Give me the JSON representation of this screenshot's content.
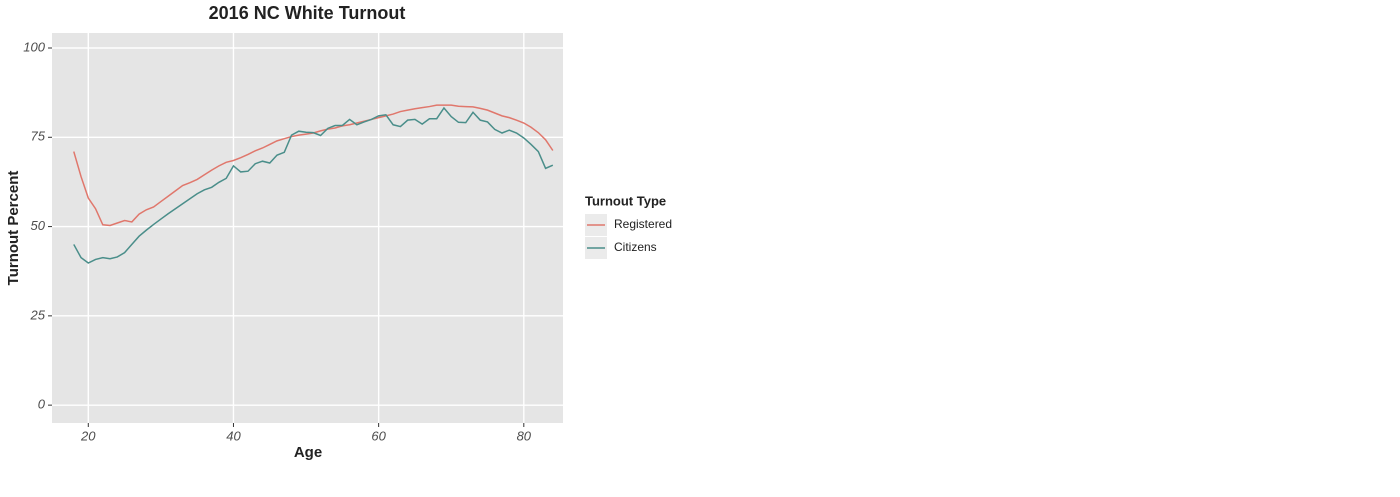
{
  "chart_data": {
    "type": "line",
    "title": "2016 NC White Turnout",
    "x_label": "Age",
    "y_label": "Turnout Percent",
    "legend_title": "Turnout Type",
    "legend_position": "right",
    "grid": true,
    "x": [
      18,
      19,
      20,
      21,
      22,
      23,
      24,
      25,
      26,
      27,
      28,
      29,
      30,
      31,
      32,
      33,
      34,
      35,
      36,
      37,
      38,
      39,
      40,
      41,
      42,
      43,
      44,
      45,
      46,
      47,
      48,
      49,
      50,
      51,
      52,
      53,
      54,
      55,
      56,
      57,
      58,
      59,
      60,
      61,
      62,
      63,
      64,
      65,
      66,
      67,
      68,
      69,
      70,
      71,
      72,
      73,
      74,
      75,
      76,
      77,
      78,
      79,
      80,
      81,
      82,
      83,
      84
    ],
    "xlim": [
      15,
      85.4
    ],
    "xticks": [
      20,
      40,
      60,
      80
    ],
    "ylim": [
      -5,
      104.2
    ],
    "yticks": [
      0,
      25,
      50,
      75,
      100
    ],
    "series": [
      {
        "name": "Registered",
        "color": "#e0776c",
        "values": [
          71,
          64,
          58,
          55,
          50.5,
          50.3,
          51,
          51.7,
          51.3,
          53.5,
          54.7,
          55.5,
          57,
          58.5,
          60,
          61.5,
          62.3,
          63.2,
          64.5,
          65.8,
          67,
          68,
          68.5,
          69.3,
          70.2,
          71.2,
          72,
          73,
          74,
          74.6,
          75.2,
          75.6,
          75.9,
          76.2,
          76.8,
          77.3,
          77.6,
          78.2,
          78.5,
          79,
          79.5,
          80,
          80.5,
          81,
          81.5,
          82.2,
          82.6,
          83,
          83.3,
          83.6,
          84,
          84,
          84,
          83.7,
          83.6,
          83.5,
          83.1,
          82.6,
          81.8,
          81,
          80.5,
          79.8,
          79,
          77.8,
          76.3,
          74.3,
          71.3
        ]
      },
      {
        "name": "Citizens",
        "color": "#4a8e8a",
        "values": [
          45,
          41.3,
          39.8,
          40.8,
          41.3,
          41,
          41.5,
          42.7,
          45,
          47.3,
          49,
          50.6,
          52.1,
          53.6,
          55,
          56.4,
          57.8,
          59.2,
          60.3,
          61,
          62.4,
          63.5,
          67,
          65.3,
          65.5,
          67.6,
          68.3,
          67.8,
          70,
          70.8,
          75.6,
          76.7,
          76.4,
          76.3,
          75.5,
          77.5,
          78.3,
          78.3,
          80,
          78.5,
          79.3,
          80,
          81,
          81.3,
          78.5,
          78,
          79.8,
          80,
          78.7,
          80.2,
          80.2,
          83.2,
          80.8,
          79.2,
          79.1,
          82,
          79.8,
          79.3,
          77.2,
          76.2,
          77,
          76.2,
          74.8,
          73,
          71,
          66.3,
          67.2
        ]
      }
    ]
  }
}
